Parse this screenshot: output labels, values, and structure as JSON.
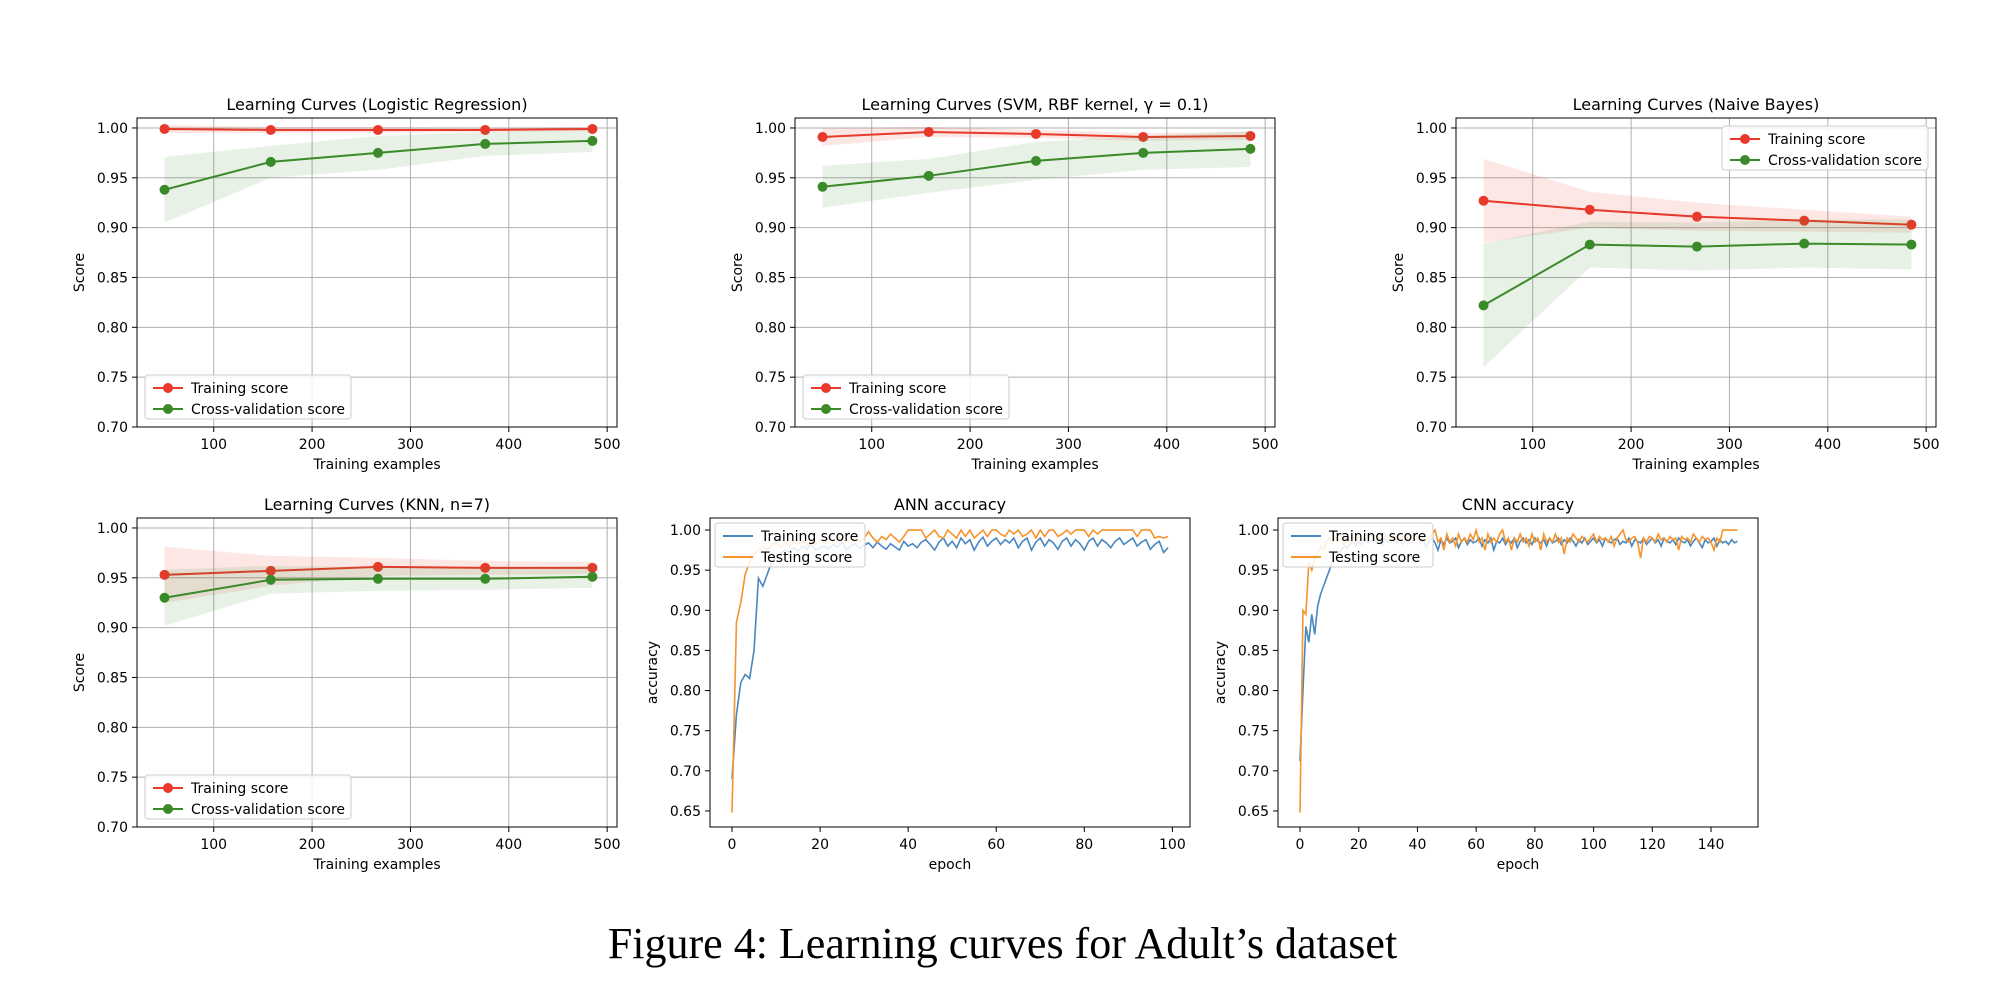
{
  "caption": "Figure 4: Learning curves for Adult’s dataset",
  "colors": {
    "training": "#e8392b",
    "cross_validation": "#3a8a2a",
    "ann_training": "#4a86c0",
    "ann_testing": "#f5932d",
    "grid": "#b0b0b0"
  },
  "chart_data": [
    {
      "id": "logreg",
      "type": "line",
      "title": "Learning Curves (Logistic Regression)",
      "xlabel": "Training examples",
      "ylabel": "Score",
      "xlim": [
        22,
        510
      ],
      "ylim": [
        0.7,
        1.01
      ],
      "xticks": [
        100,
        200,
        300,
        400,
        500
      ],
      "yticks": [
        "0.70",
        "0.75",
        "0.80",
        "0.85",
        "0.90",
        "0.95",
        "1.00"
      ],
      "grid": true,
      "legend": "lower-left",
      "x": [
        50,
        158,
        267,
        376,
        485
      ],
      "series": [
        {
          "name": "Training score",
          "color_key": "training",
          "marker": true,
          "values": [
            0.999,
            0.998,
            0.998,
            0.998,
            0.999
          ],
          "lower": [
            0.995,
            0.995,
            0.995,
            0.996,
            0.997
          ],
          "upper": [
            1.003,
            1.001,
            1.001,
            1.0,
            1.001
          ]
        },
        {
          "name": "Cross-validation score",
          "color_key": "cross_validation",
          "marker": true,
          "values": [
            0.938,
            0.966,
            0.975,
            0.984,
            0.987
          ],
          "lower": [
            0.905,
            0.95,
            0.958,
            0.972,
            0.976
          ],
          "upper": [
            0.971,
            0.982,
            0.992,
            0.996,
            0.998
          ]
        }
      ]
    },
    {
      "id": "svm",
      "type": "line",
      "title": "Learning Curves (SVM, RBF kernel, γ = 0.1)",
      "xlabel": "Training examples",
      "ylabel": "Score",
      "xlim": [
        22,
        510
      ],
      "ylim": [
        0.7,
        1.01
      ],
      "xticks": [
        100,
        200,
        300,
        400,
        500
      ],
      "yticks": [
        "0.70",
        "0.75",
        "0.80",
        "0.85",
        "0.90",
        "0.95",
        "1.00"
      ],
      "grid": true,
      "legend": "lower-left",
      "x": [
        50,
        158,
        267,
        376,
        485
      ],
      "series": [
        {
          "name": "Training score",
          "color_key": "training",
          "marker": true,
          "values": [
            0.991,
            0.996,
            0.994,
            0.991,
            0.992
          ],
          "lower": [
            0.982,
            0.991,
            0.99,
            0.987,
            0.988
          ],
          "upper": [
            1.0,
            1.001,
            0.998,
            0.995,
            0.996
          ]
        },
        {
          "name": "Cross-validation score",
          "color_key": "cross_validation",
          "marker": true,
          "values": [
            0.941,
            0.952,
            0.967,
            0.975,
            0.979
          ],
          "lower": [
            0.92,
            0.935,
            0.948,
            0.958,
            0.961
          ],
          "upper": [
            0.962,
            0.969,
            0.986,
            0.992,
            0.997
          ]
        }
      ]
    },
    {
      "id": "nb",
      "type": "line",
      "title": "Learning Curves (Naive Bayes)",
      "xlabel": "Training examples",
      "ylabel": "Score",
      "xlim": [
        22,
        510
      ],
      "ylim": [
        0.7,
        1.01
      ],
      "xticks": [
        100,
        200,
        300,
        400,
        500
      ],
      "yticks": [
        "0.70",
        "0.75",
        "0.80",
        "0.85",
        "0.90",
        "0.95",
        "1.00"
      ],
      "grid": true,
      "legend": "upper-right",
      "x": [
        50,
        158,
        267,
        376,
        485
      ],
      "series": [
        {
          "name": "Training score",
          "color_key": "training",
          "marker": true,
          "values": [
            0.927,
            0.918,
            0.911,
            0.907,
            0.903
          ],
          "lower": [
            0.885,
            0.9,
            0.897,
            0.896,
            0.895
          ],
          "upper": [
            0.969,
            0.936,
            0.925,
            0.918,
            0.911
          ]
        },
        {
          "name": "Cross-validation score",
          "color_key": "cross_validation",
          "marker": true,
          "values": [
            0.822,
            0.883,
            0.881,
            0.884,
            0.883
          ],
          "lower": [
            0.76,
            0.86,
            0.857,
            0.86,
            0.858
          ],
          "upper": [
            0.884,
            0.906,
            0.905,
            0.908,
            0.908
          ]
        }
      ]
    },
    {
      "id": "knn",
      "type": "line",
      "title": "Learning Curves (KNN, n=7)",
      "xlabel": "Training examples",
      "ylabel": "Score",
      "xlim": [
        22,
        510
      ],
      "ylim": [
        0.7,
        1.01
      ],
      "xticks": [
        100,
        200,
        300,
        400,
        500
      ],
      "yticks": [
        "0.70",
        "0.75",
        "0.80",
        "0.85",
        "0.90",
        "0.95",
        "1.00"
      ],
      "grid": true,
      "legend": "lower-left",
      "x": [
        50,
        158,
        267,
        376,
        485
      ],
      "series": [
        {
          "name": "Training score",
          "color_key": "training",
          "marker": true,
          "values": [
            0.953,
            0.957,
            0.961,
            0.96,
            0.96
          ],
          "lower": [
            0.925,
            0.942,
            0.952,
            0.953,
            0.954
          ],
          "upper": [
            0.981,
            0.972,
            0.97,
            0.967,
            0.966
          ]
        },
        {
          "name": "Cross-validation score",
          "color_key": "cross_validation",
          "marker": true,
          "values": [
            0.93,
            0.948,
            0.949,
            0.949,
            0.951
          ],
          "lower": [
            0.902,
            0.934,
            0.937,
            0.938,
            0.94
          ],
          "upper": [
            0.958,
            0.962,
            0.961,
            0.96,
            0.962
          ]
        }
      ]
    },
    {
      "id": "ann",
      "type": "line",
      "title": "ANN accuracy",
      "xlabel": "epoch",
      "ylabel": "accuracy",
      "xlim": [
        -5,
        104
      ],
      "ylim": [
        0.63,
        1.015
      ],
      "xticks": [
        0,
        20,
        40,
        60,
        80,
        100
      ],
      "yticks": [
        "0.65",
        "0.70",
        "0.75",
        "0.80",
        "0.85",
        "0.90",
        "0.95",
        "1.00"
      ],
      "grid": false,
      "legend": "upper-left",
      "series": [
        {
          "name": "Training score",
          "color_key": "ann_training",
          "marker": false,
          "values": [
            0.69,
            0.77,
            0.81,
            0.82,
            0.815,
            0.85,
            0.94,
            0.93,
            0.945,
            0.96,
            0.965,
            0.97,
            0.975,
            0.972,
            0.978,
            0.974,
            0.98,
            0.976,
            0.982,
            0.975,
            0.978,
            0.98,
            0.976,
            0.982,
            0.979,
            0.985,
            0.976,
            0.98,
            0.983,
            0.977,
            0.981,
            0.984,
            0.978,
            0.985,
            0.98,
            0.976,
            0.983,
            0.979,
            0.975,
            0.986,
            0.98,
            0.983,
            0.978,
            0.985,
            0.988,
            0.982,
            0.975,
            0.985,
            0.99,
            0.98,
            0.986,
            0.978,
            0.99,
            0.983,
            0.988,
            0.975,
            0.985,
            0.991,
            0.98,
            0.986,
            0.99,
            0.982,
            0.988,
            0.984,
            0.99,
            0.978,
            0.986,
            0.99,
            0.975,
            0.985,
            0.99,
            0.98,
            0.988,
            0.984,
            0.976,
            0.986,
            0.99,
            0.98,
            0.988,
            0.983,
            0.975,
            0.986,
            0.99,
            0.98,
            0.988,
            0.984,
            0.978,
            0.986,
            0.99,
            0.982,
            0.986,
            0.99,
            0.98,
            0.985,
            0.988,
            0.976,
            0.982,
            0.986,
            0.972,
            0.978
          ]
        },
        {
          "name": "Testing score",
          "color_key": "ann_testing",
          "marker": false,
          "values": [
            0.648,
            0.885,
            0.91,
            0.945,
            0.96,
            0.97,
            0.975,
            0.98,
            0.975,
            0.982,
            0.985,
            0.978,
            0.984,
            0.98,
            0.986,
            0.982,
            0.987,
            0.98,
            0.985,
            0.982,
            0.988,
            0.984,
            0.99,
            0.985,
            0.992,
            0.988,
            0.985,
            0.99,
            0.992,
            0.986,
            0.99,
            0.998,
            0.99,
            0.985,
            0.992,
            0.988,
            0.995,
            0.99,
            0.985,
            0.992,
            1.0,
            1.0,
            1.0,
            1.0,
            0.99,
            0.995,
            1.0,
            0.992,
            0.99,
            1.0,
            0.995,
            0.99,
            1.0,
            0.992,
            1.0,
            0.99,
            0.995,
            1.0,
            0.992,
            1.0,
            1.0,
            0.995,
            0.992,
            1.0,
            0.995,
            1.0,
            0.992,
            0.995,
            1.0,
            0.99,
            1.0,
            0.992,
            1.0,
            1.0,
            0.992,
            0.995,
            1.0,
            0.995,
            1.0,
            1.0,
            1.0,
            0.992,
            1.0,
            0.995,
            1.0,
            1.0,
            1.0,
            1.0,
            1.0,
            1.0,
            1.0,
            1.0,
            0.992,
            1.0,
            1.0,
            1.0,
            0.99,
            0.992,
            0.99,
            0.992
          ]
        }
      ]
    },
    {
      "id": "cnn",
      "type": "line",
      "title": "CNN accuracy",
      "xlabel": "epoch",
      "ylabel": "accuracy",
      "xlim": [
        -7.5,
        156
      ],
      "ylim": [
        0.63,
        1.015
      ],
      "xticks": [
        0,
        20,
        40,
        60,
        80,
        100,
        120,
        140
      ],
      "yticks": [
        "0.65",
        "0.70",
        "0.75",
        "0.80",
        "0.85",
        "0.90",
        "0.95",
        "1.00"
      ],
      "grid": false,
      "legend": "upper-left",
      "series": [
        {
          "name": "Training score",
          "color_key": "ann_training",
          "marker": false,
          "values": [
            0.712,
            0.8,
            0.88,
            0.86,
            0.895,
            0.87,
            0.905,
            0.92,
            0.93,
            0.94,
            0.95,
            0.96,
            0.965,
            0.97,
            0.975,
            0.98,
            0.978,
            0.982,
            0.985,
            0.98,
            0.986,
            0.982,
            0.988,
            0.984,
            0.986,
            0.99,
            0.984,
            0.988,
            0.982,
            0.99,
            0.985,
            0.986,
            0.99,
            0.984,
            0.988,
            0.982,
            0.99,
            0.986,
            0.984,
            0.988,
            0.99,
            0.984,
            0.988,
            0.978,
            0.986,
            0.99,
            0.984,
            0.975,
            0.988,
            0.982,
            0.99,
            0.984,
            0.986,
            0.99,
            0.978,
            0.986,
            0.99,
            0.982,
            0.988,
            0.984,
            0.986,
            0.99,
            0.98,
            0.988,
            0.984,
            0.99,
            0.975,
            0.986,
            0.984,
            0.99,
            0.982,
            0.988,
            0.984,
            0.99,
            0.978,
            0.986,
            0.99,
            0.984,
            0.988,
            0.982,
            0.99,
            0.986,
            0.984,
            0.988,
            0.98,
            0.99,
            0.984,
            0.986,
            0.99,
            0.982,
            0.988,
            0.984,
            0.99,
            0.986,
            0.98,
            0.988,
            0.984,
            0.99,
            0.982,
            0.986,
            0.99,
            0.984,
            0.988,
            0.98,
            0.99,
            0.986,
            0.984,
            0.988,
            0.99,
            0.982,
            0.986,
            0.984,
            0.99,
            0.98,
            0.988,
            0.986,
            0.984,
            0.99,
            0.982,
            0.986,
            0.99,
            0.984,
            0.988,
            0.98,
            0.99,
            0.986,
            0.984,
            0.988,
            0.982,
            0.99,
            0.986,
            0.984,
            0.988,
            0.98,
            0.986,
            0.99,
            0.984,
            0.978,
            0.988,
            0.984,
            0.986,
            0.99,
            0.98,
            0.988,
            0.984,
            0.986,
            0.982,
            0.988,
            0.984,
            0.986
          ]
        },
        {
          "name": "Testing score",
          "color_key": "ann_testing",
          "marker": false,
          "values": [
            0.648,
            0.9,
            0.895,
            0.96,
            0.95,
            0.965,
            0.97,
            0.98,
            0.975,
            0.985,
            0.99,
            0.985,
            0.992,
            0.985,
            0.99,
            0.98,
            0.995,
            0.985,
            0.99,
            0.985,
            0.992,
            0.988,
            0.99,
            0.985,
            0.995,
            0.99,
            0.985,
            0.992,
            0.988,
            0.995,
            0.99,
            0.985,
            0.992,
            0.988,
            0.985,
            0.99,
            0.995,
            0.985,
            0.992,
            0.988,
            0.99,
            0.985,
            0.992,
            0.988,
            0.99,
            0.995,
            1.0,
            0.985,
            0.99,
            0.975,
            0.995,
            0.985,
            0.99,
            0.98,
            0.995,
            0.985,
            0.99,
            0.985,
            0.995,
            0.988,
            1.0,
            0.985,
            0.99,
            0.975,
            0.995,
            0.985,
            0.99,
            0.985,
            0.995,
            1.0,
            0.985,
            0.99,
            0.975,
            0.99,
            0.985,
            0.995,
            0.985,
            0.99,
            0.98,
            0.995,
            0.985,
            0.99,
            0.975,
            0.995,
            0.985,
            0.99,
            0.985,
            0.995,
            0.985,
            0.99,
            0.97,
            0.99,
            0.985,
            0.995,
            0.99,
            0.985,
            0.992,
            0.988,
            0.985,
            0.99,
            0.995,
            0.985,
            0.992,
            0.988,
            0.99,
            0.985,
            0.992,
            0.98,
            0.99,
            0.995,
            1.0,
            0.988,
            0.985,
            0.99,
            0.992,
            0.985,
            0.965,
            0.99,
            0.985,
            0.992,
            0.99,
            0.985,
            0.995,
            0.988,
            0.99,
            0.985,
            0.992,
            0.988,
            0.99,
            0.975,
            0.992,
            0.988,
            0.99,
            0.985,
            0.995,
            0.99,
            0.985,
            0.992,
            0.988,
            0.99,
            0.985,
            0.975,
            0.99,
            0.985,
            1.0,
            1.0,
            1.0,
            1.0,
            1.0,
            1.0
          ]
        }
      ]
    }
  ]
}
